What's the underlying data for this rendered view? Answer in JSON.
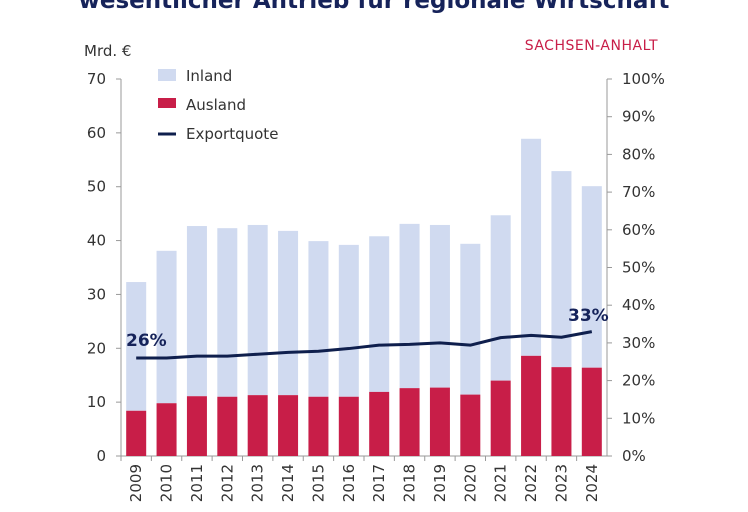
{
  "title": "wesentlicher Antrieb für regionale Wirtschaft",
  "region_label": "SACHSEN-ANHALT",
  "colors": {
    "inland": "#d0daf0",
    "ausland": "#c81e48",
    "quote": "#0f1f4d"
  },
  "chart_data": {
    "type": "bar",
    "stacked": true,
    "title": "wesentlicher Antrieb für regionale Wirtschaft",
    "ylabel": "Mrd. €",
    "ylim": [
      0,
      70
    ],
    "y2lim": [
      0,
      100
    ],
    "yticks": [
      "0",
      "10",
      "20",
      "30",
      "40",
      "50",
      "60",
      "70"
    ],
    "y2ticks": [
      "0%",
      "10%",
      "20%",
      "30%",
      "40%",
      "50%",
      "60%",
      "70%",
      "80%",
      "90%",
      "100%"
    ],
    "categories": [
      "2009",
      "2010",
      "2011",
      "2012",
      "2013",
      "2014",
      "2015",
      "2016",
      "2017",
      "2018",
      "2019",
      "2020",
      "2021",
      "2022",
      "2023",
      "2024"
    ],
    "legend": [
      "Inland",
      "Ausland",
      "Exportquote"
    ],
    "legend_position": "top-left",
    "series": [
      {
        "name": "Ausland",
        "values": [
          8.4,
          9.8,
          11.1,
          11.0,
          11.3,
          11.3,
          11.0,
          11.0,
          11.9,
          12.6,
          12.7,
          11.4,
          14.0,
          18.6,
          16.5,
          16.4
        ]
      },
      {
        "name": "Inland",
        "values": [
          23.9,
          28.3,
          31.6,
          31.3,
          31.6,
          30.5,
          28.9,
          28.2,
          28.9,
          30.5,
          30.2,
          28.0,
          30.7,
          40.3,
          36.4,
          33.7
        ]
      },
      {
        "name": "Exportquote",
        "axis": "right",
        "type": "line",
        "values": [
          26,
          26,
          26.5,
          26.5,
          27,
          27.5,
          27.8,
          28.5,
          29.4,
          29.6,
          30,
          29.4,
          31.4,
          32,
          31.5,
          33
        ]
      }
    ],
    "annotations": [
      "26%",
      "33%"
    ]
  }
}
